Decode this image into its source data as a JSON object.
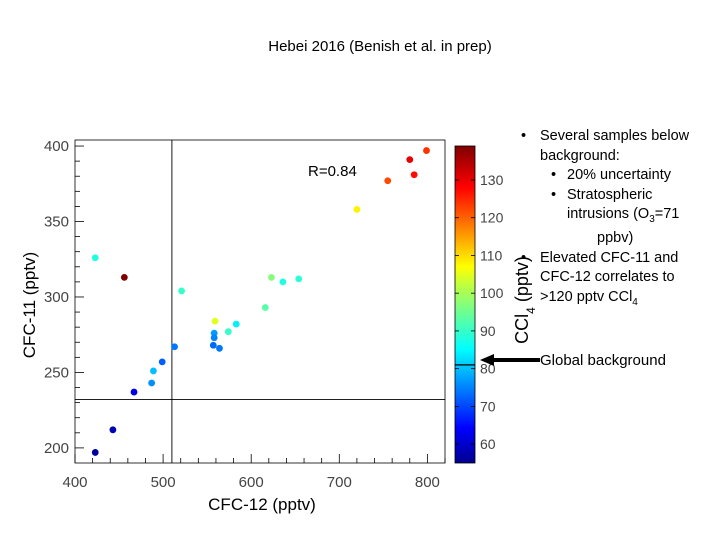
{
  "title": "Hebei 2016 (Benish et al. in prep)",
  "chart_data": {
    "type": "scatter",
    "title": "Hebei 2016 (Benish et al. in prep)",
    "xlabel": "CFC-12 (pptv)",
    "ylabel": "CFC-11 (pptv)",
    "xlim": [
      400,
      820
    ],
    "ylim": [
      190,
      404
    ],
    "xticks": [
      400,
      500,
      600,
      700,
      800
    ],
    "yticks": [
      200,
      250,
      300,
      350,
      400
    ],
    "annotation": "R=0.84",
    "reference_lines": {
      "vertical_x": 510,
      "horizontal_y": 232
    },
    "colorbar": {
      "label": "CCl4 (pptv)",
      "min": 55,
      "max": 139,
      "ticks": [
        60,
        70,
        80,
        90,
        100,
        110,
        120,
        130
      ],
      "global_background": 81
    },
    "points": [
      {
        "x": 423,
        "y": 326,
        "c": 88
      },
      {
        "x": 456,
        "y": 313,
        "c": 139
      },
      {
        "x": 423,
        "y": 197,
        "c": 56
      },
      {
        "x": 443,
        "y": 212,
        "c": 58
      },
      {
        "x": 467,
        "y": 237,
        "c": 62
      },
      {
        "x": 487,
        "y": 243,
        "c": 76
      },
      {
        "x": 489,
        "y": 251,
        "c": 80
      },
      {
        "x": 499,
        "y": 257,
        "c": 72
      },
      {
        "x": 513,
        "y": 267,
        "c": 74
      },
      {
        "x": 521,
        "y": 304,
        "c": 90
      },
      {
        "x": 557,
        "y": 268,
        "c": 73
      },
      {
        "x": 558,
        "y": 276,
        "c": 77
      },
      {
        "x": 558,
        "y": 273,
        "c": 75
      },
      {
        "x": 559,
        "y": 284,
        "c": 105
      },
      {
        "x": 564,
        "y": 266,
        "c": 74
      },
      {
        "x": 574,
        "y": 277,
        "c": 90
      },
      {
        "x": 583,
        "y": 282,
        "c": 84
      },
      {
        "x": 616,
        "y": 293,
        "c": 93
      },
      {
        "x": 623,
        "y": 313,
        "c": 97
      },
      {
        "x": 636,
        "y": 310,
        "c": 88
      },
      {
        "x": 654,
        "y": 312,
        "c": 89
      },
      {
        "x": 720,
        "y": 358,
        "c": 108
      },
      {
        "x": 755,
        "y": 377,
        "c": 122
      },
      {
        "x": 780,
        "y": 391,
        "c": 130
      },
      {
        "x": 785,
        "y": 381,
        "c": 127
      },
      {
        "x": 799,
        "y": 397,
        "c": 124
      }
    ]
  },
  "notes": {
    "b1_line1": "Several samples below",
    "b1_line2": "background:",
    "s1": "20% uncertainty",
    "s2_line1": "Stratospheric",
    "s2_line2a": "intrusions (O",
    "s2_sub": "3",
    "s2_line2b": "=71",
    "s2_line3": "ppbv)",
    "b2_line1": "Elevated CFC-11 and",
    "b2_line2": "CFC-12 correlates to",
    "b2_line3a": ">120 pptv CCl",
    "b2_sub": "4",
    "bullet": "•"
  },
  "global_background_label": "Global background"
}
